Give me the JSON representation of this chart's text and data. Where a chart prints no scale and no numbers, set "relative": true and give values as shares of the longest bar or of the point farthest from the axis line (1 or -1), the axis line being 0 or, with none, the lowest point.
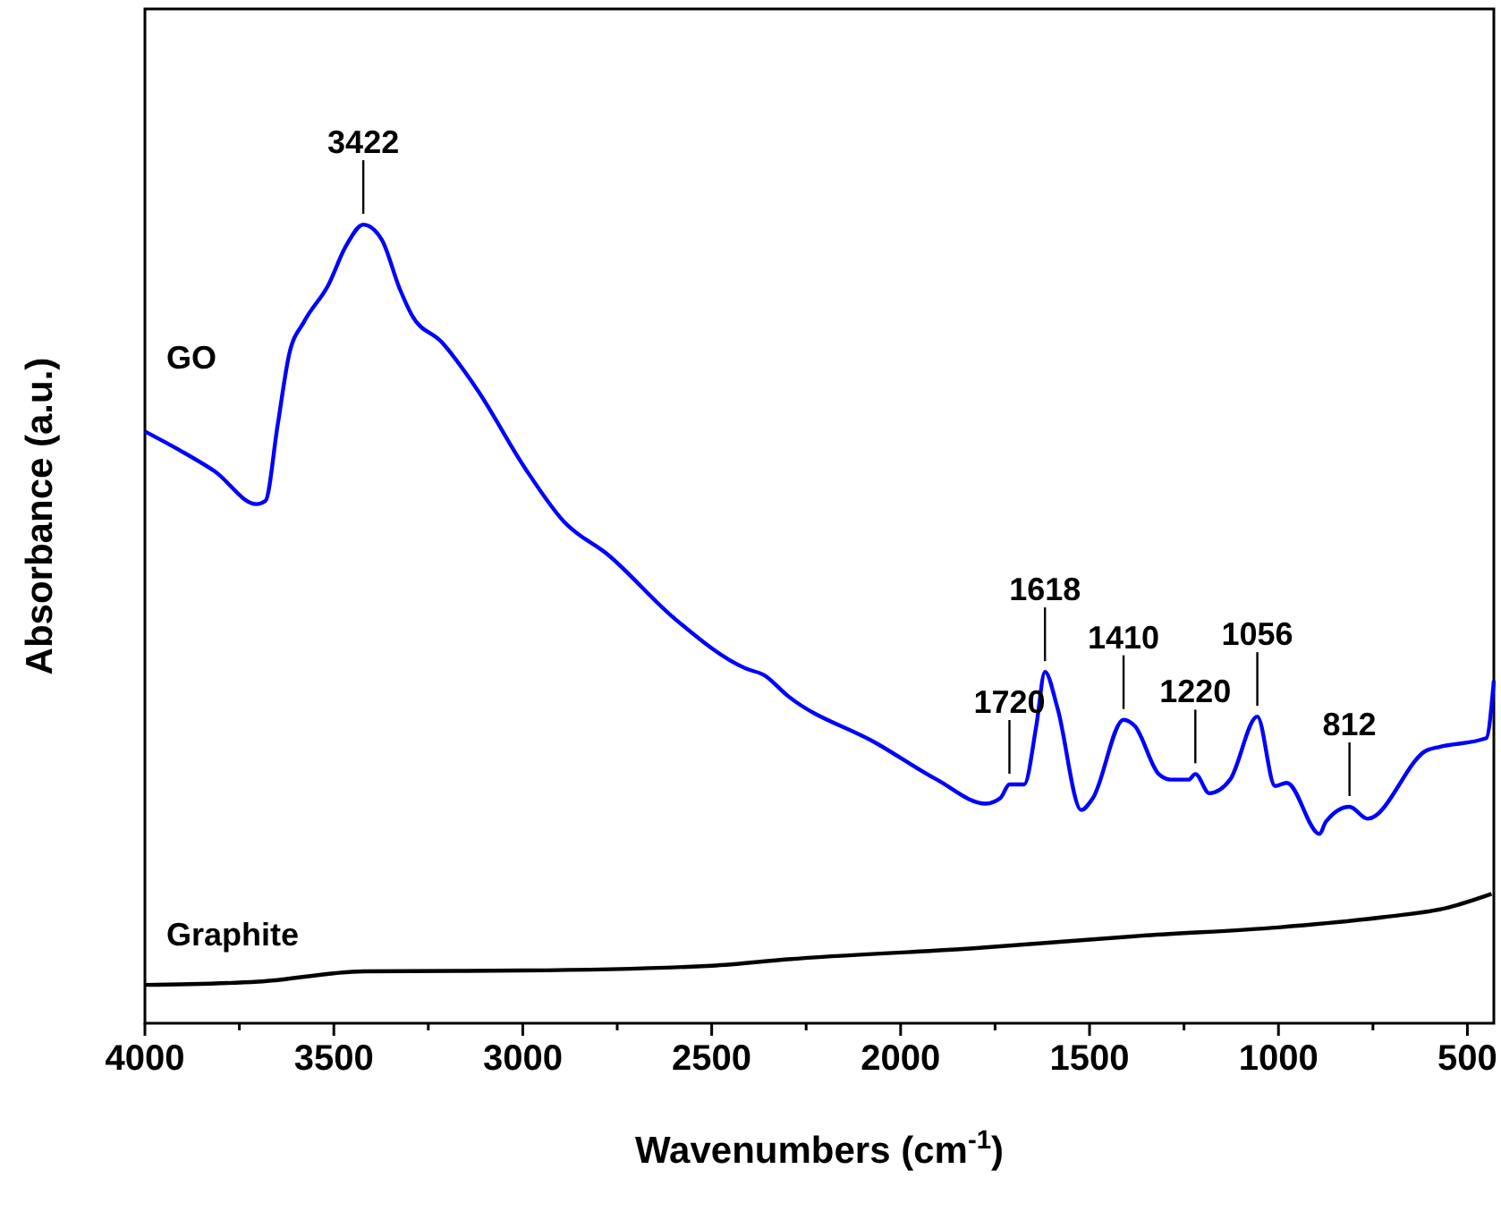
{
  "chart_data": {
    "type": "line",
    "relative": true,
    "xlabel": "Wavenumbers (cm$^{-1}$)",
    "ylabel": "Absorbance (a.u.)",
    "xlim": [
      4000,
      430
    ],
    "xticks": [
      4000,
      {
        "value": 3750,
        "label": null
      },
      3500,
      {
        "value": 3250,
        "label": null
      },
      3000,
      {
        "value": 2750,
        "label": null
      },
      2500,
      {
        "value": 2250,
        "label": null
      },
      2000,
      {
        "value": 1750,
        "label": null
      },
      1500,
      {
        "value": 1250,
        "label": null
      },
      1000,
      {
        "value": 750,
        "label": null
      },
      500
    ],
    "grid": false,
    "marker": "none",
    "line_style": "solid",
    "series": [
      {
        "name": "GO",
        "color": "#0000ff",
        "x": [
          4000,
          3910,
          3815,
          3705,
          3681,
          3649,
          3618,
          3578,
          3515,
          3468,
          3422,
          3373,
          3326,
          3294,
          3215,
          3120,
          2994,
          2891,
          2773,
          2599,
          2409,
          2362,
          2299,
          2062,
          1904,
          1775,
          1736,
          1712,
          1673,
          1641,
          1618,
          1585,
          1522,
          1491,
          1410,
          1380,
          1317,
          1285,
          1238,
          1220,
          1183,
          1128,
          1056,
          1009,
          978,
          891,
          875,
          812,
          764,
          606,
          574,
          450,
          430
        ],
        "values": [
          0.741,
          0.718,
          0.691,
          0.65,
          0.654,
          0.748,
          0.838,
          0.879,
          0.924,
          0.973,
          1.0,
          0.981,
          0.92,
          0.887,
          0.853,
          0.793,
          0.695,
          0.628,
          0.586,
          0.507,
          0.444,
          0.436,
          0.41,
          0.35,
          0.305,
          0.275,
          0.282,
          0.299,
          0.299,
          0.372,
          0.44,
          0.395,
          0.267,
          0.282,
          0.38,
          0.372,
          0.312,
          0.305,
          0.305,
          0.312,
          0.288,
          0.305,
          0.384,
          0.297,
          0.301,
          0.237,
          0.252,
          0.271,
          0.256,
          0.342,
          0.346,
          0.357,
          0.429
        ]
      },
      {
        "name": "Graphite",
        "color": "#000000",
        "x": [
          4000,
          3700,
          3422,
          3000,
          2500,
          2299,
          1800,
          1350,
          1000,
          720,
          550,
          436
        ],
        "values": [
          0.048,
          0.052,
          0.065,
          0.066,
          0.072,
          0.08,
          0.094,
          0.11,
          0.12,
          0.133,
          0.145,
          0.162
        ]
      }
    ],
    "annotations": [
      {
        "text": "3422",
        "x": 3422,
        "y": 1.0
      },
      {
        "text": "1720",
        "x": 1712,
        "y": 0.299
      },
      {
        "text": "1618",
        "x": 1618,
        "y": 0.44
      },
      {
        "text": "1410",
        "x": 1410,
        "y": 0.38
      },
      {
        "text": "1220",
        "x": 1220,
        "y": 0.312
      },
      {
        "text": "1056",
        "x": 1056,
        "y": 0.384
      },
      {
        "text": "812",
        "x": 812,
        "y": 0.271
      }
    ]
  }
}
